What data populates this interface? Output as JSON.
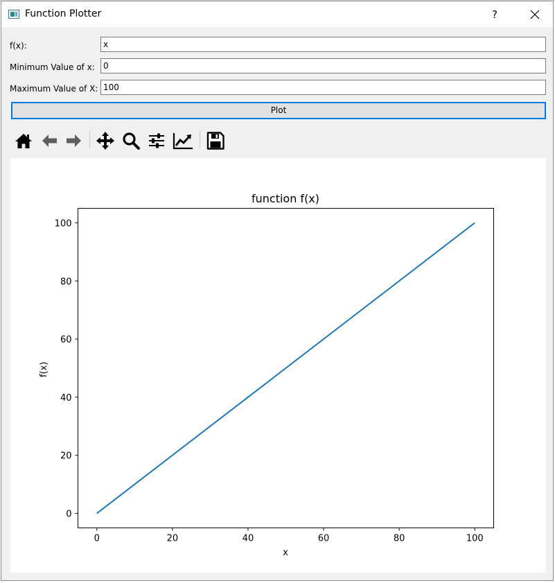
{
  "window": {
    "title": "Function Plotter",
    "help_label": "?"
  },
  "form": {
    "fx_label": "f(x):",
    "fx_value": "x",
    "min_label": "Minimum Value of x:",
    "min_value": "0",
    "max_label": "Maximum Value of X:",
    "max_value": "100",
    "plot_label": "Plot"
  },
  "toolbar": {
    "tools": [
      "home-icon",
      "back-arrow-icon",
      "forward-arrow-icon",
      "pan-icon",
      "zoom-icon",
      "subplots-icon",
      "customize-icon",
      "save-icon"
    ]
  },
  "colors": {
    "accent": "#0078d7",
    "line": "#1f77b4"
  },
  "chart_data": {
    "type": "line",
    "title": "function f(x)",
    "xlabel": "x",
    "ylabel": "f(x)",
    "xlim": [
      -5,
      105
    ],
    "ylim": [
      -5,
      105
    ],
    "xticks": [
      0,
      20,
      40,
      60,
      80,
      100
    ],
    "yticks": [
      0,
      20,
      40,
      60,
      80,
      100
    ],
    "grid": false,
    "series": [
      {
        "x": [
          0,
          100
        ],
        "y": [
          0,
          100
        ],
        "color": "#1f77b4"
      }
    ]
  }
}
